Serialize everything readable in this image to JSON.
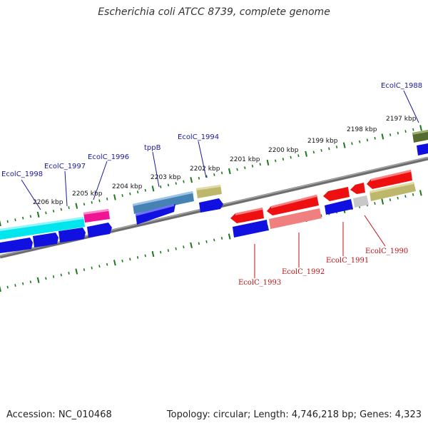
{
  "title": "Escherichia coli ATCC 8739, complete genome",
  "footer": {
    "accession": "Accession: NC_010468",
    "summary": "Topology: circular; Length: 4,746,218 bp; Genes: 4,323"
  },
  "colors": {
    "backbone": "#808080",
    "tick": "#1a7a1a",
    "cds_forward": "#1010e0",
    "cds_reverse": "#ee1010",
    "label_top": "#1a1aa0",
    "label_bottom": "#c01010"
  },
  "scale": {
    "unit": "kbp",
    "ticks": [
      {
        "value": 2206,
        "label": "2206 kbp"
      },
      {
        "value": 2205,
        "label": "2205 kbp"
      },
      {
        "value": 2204,
        "label": "2204 kbp"
      },
      {
        "value": 2203,
        "label": "2203 kbp"
      },
      {
        "value": 2202,
        "label": "2202 kbp"
      },
      {
        "value": 2201,
        "label": "2201 kbp"
      },
      {
        "value": 2200,
        "label": "2200 kbp"
      },
      {
        "value": 2199,
        "label": "2199 kbp"
      },
      {
        "value": 2198,
        "label": "2198 kbp"
      },
      {
        "value": 2197,
        "label": "2197 kbp"
      }
    ]
  },
  "gene_labels_top": [
    "EcolC_1998",
    "EcolC_1997",
    "EcolC_1996",
    "tppB",
    "EcolC_1994",
    "EcolC_1988"
  ],
  "gene_labels_bottom": [
    "EcolC_1993",
    "EcolC_1992",
    "EcolC_1991",
    "EcolC_1990"
  ],
  "feature_colors": [
    "#00e5ee",
    "#ee1493",
    "#4682b4",
    "#bdb76b",
    "#556b2f",
    "#f08080",
    "#c8c8c8"
  ]
}
